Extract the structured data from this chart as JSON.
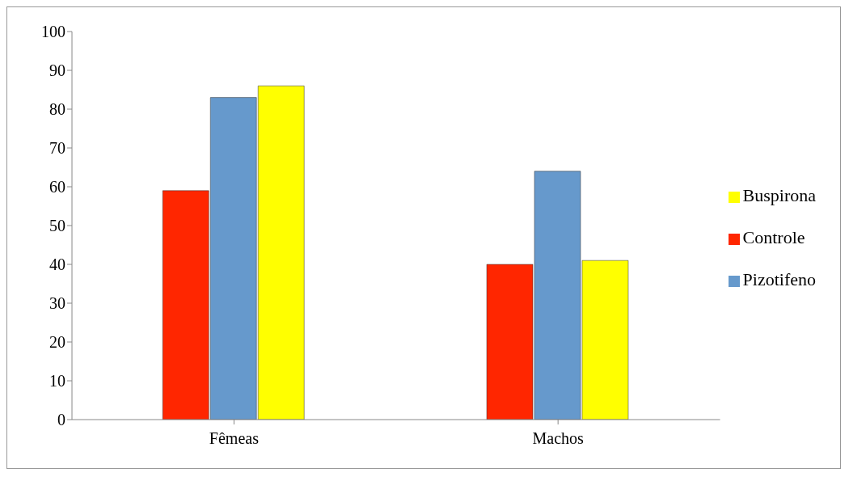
{
  "chart_data": {
    "type": "bar",
    "categories": [
      "Fêmeas",
      "Machos"
    ],
    "series": [
      {
        "name": "Controle",
        "color": "#ff2600",
        "values": [
          59,
          40
        ]
      },
      {
        "name": "Pizotifeno",
        "color": "#6699cc",
        "values": [
          83,
          64
        ]
      },
      {
        "name": "Buspirona",
        "color": "#ffff00",
        "values": [
          86,
          41
        ]
      }
    ],
    "ylim": [
      0,
      100
    ],
    "yticks": [
      0,
      10,
      20,
      30,
      40,
      50,
      60,
      70,
      80,
      90,
      100
    ],
    "grid": false,
    "legend": "right"
  }
}
